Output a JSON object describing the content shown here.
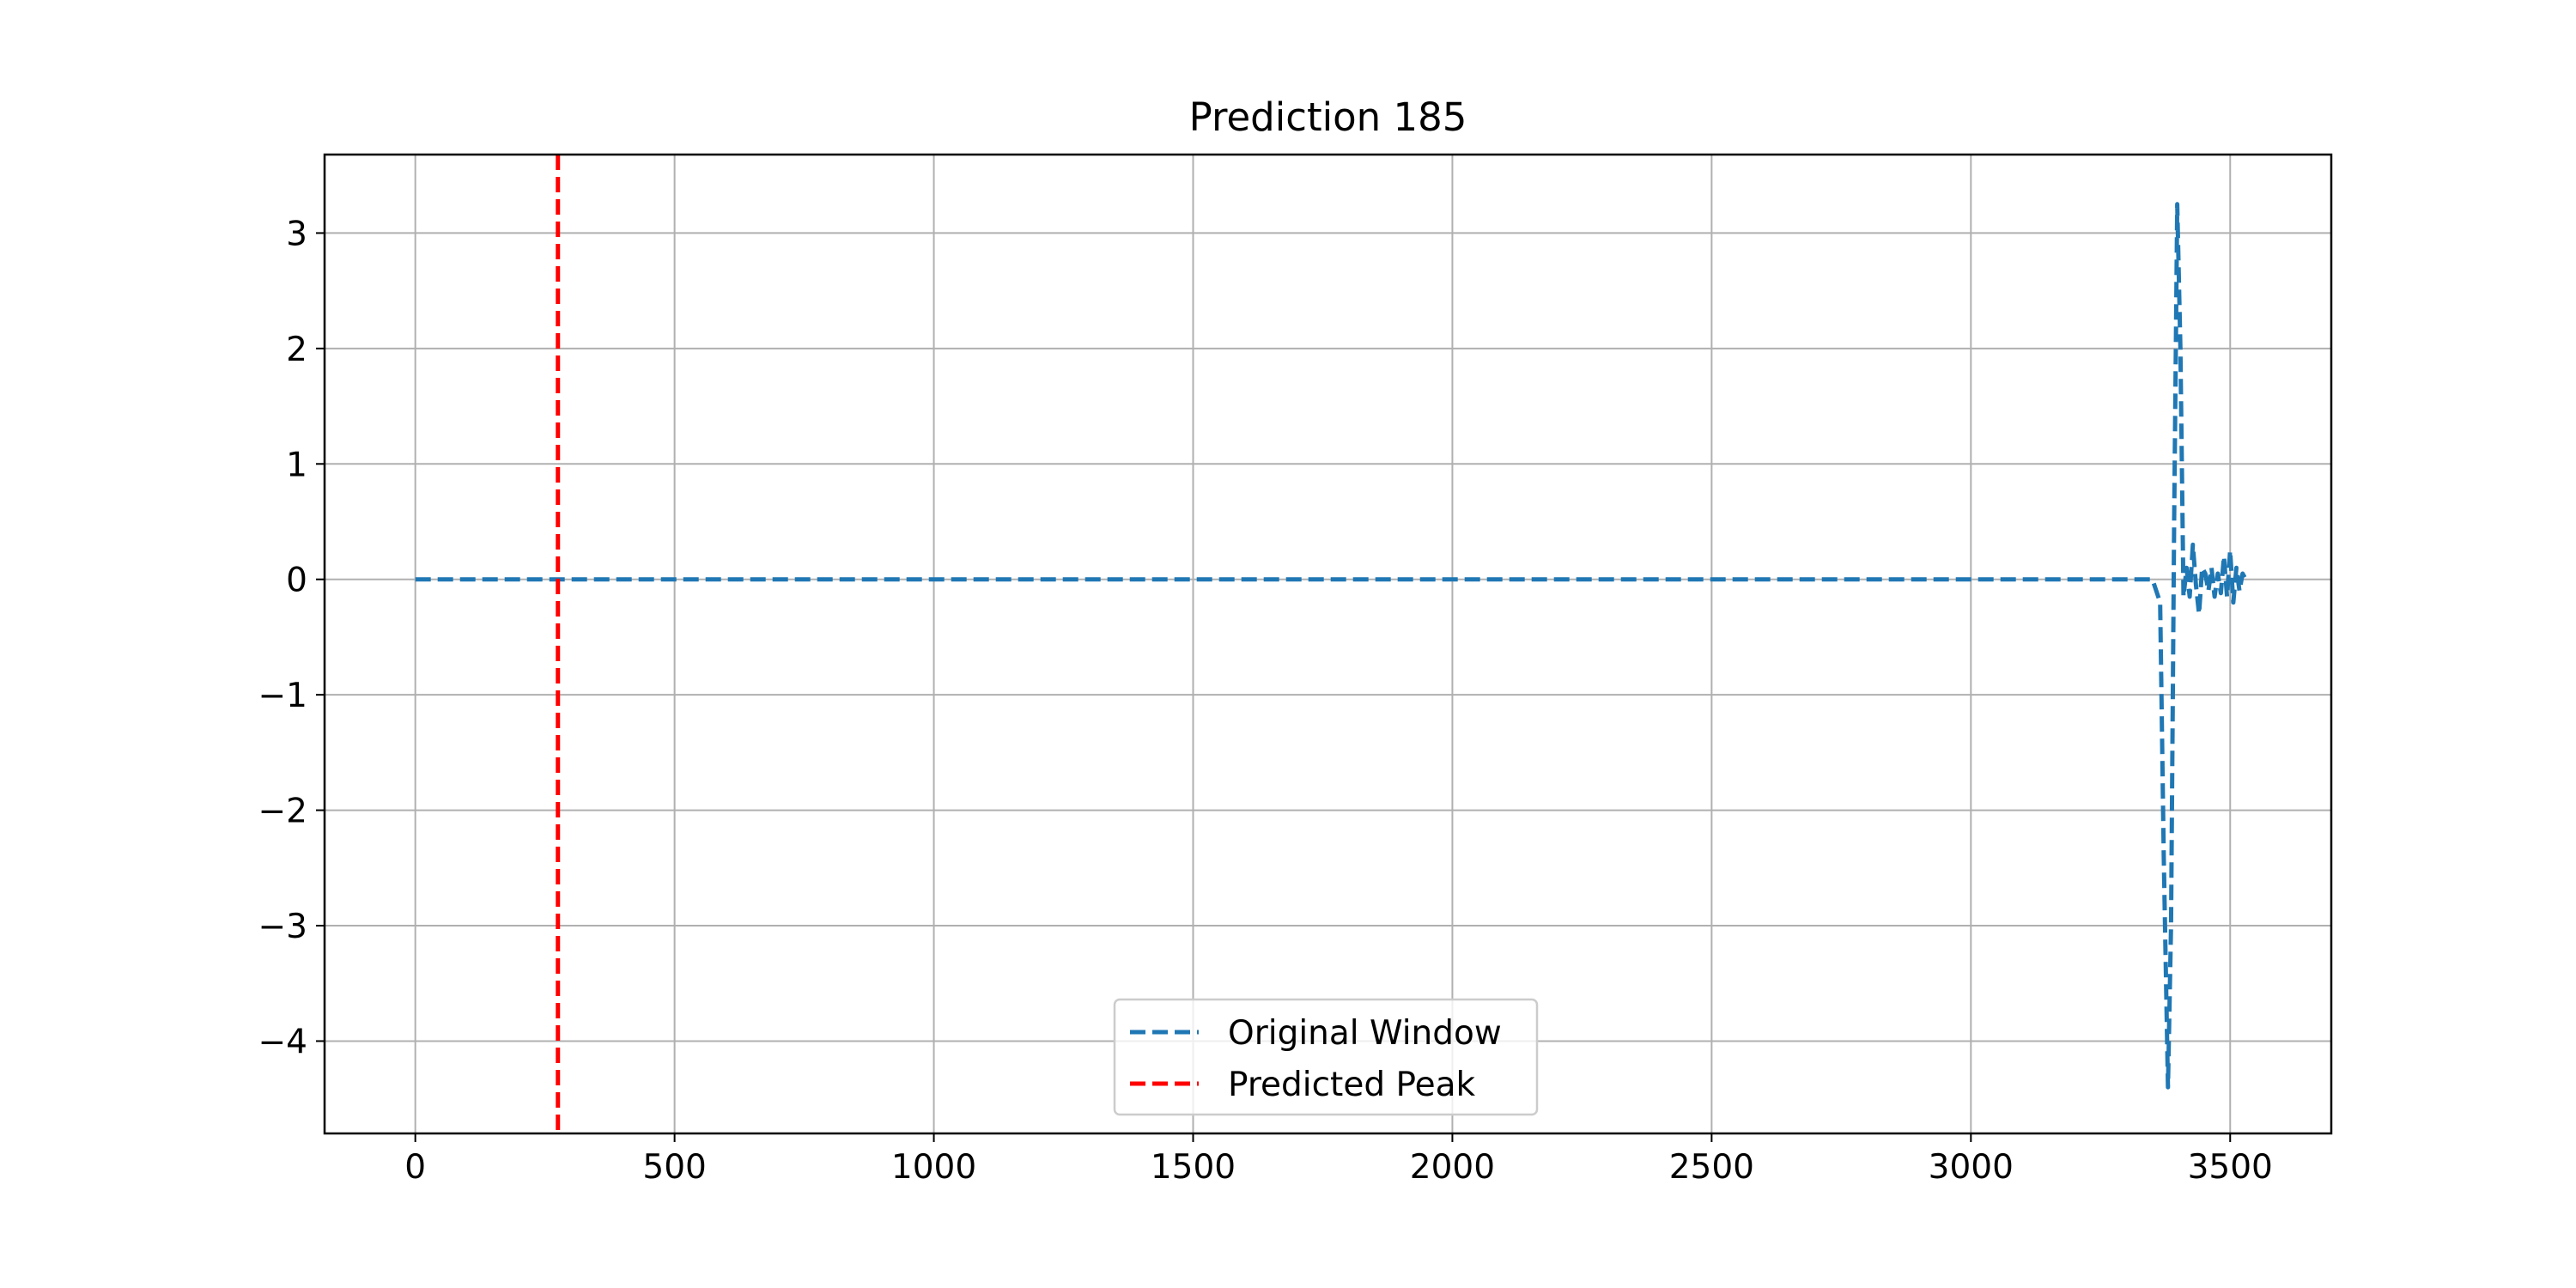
{
  "chart_data": {
    "type": "line",
    "title": "Prediction 185",
    "xlabel": "",
    "ylabel": "",
    "xlim": [
      -175,
      3695
    ],
    "ylim": [
      -4.8,
      3.68
    ],
    "xticks": [
      0,
      500,
      1000,
      1500,
      2000,
      2500,
      3000,
      3500
    ],
    "xtick_labels": [
      "0",
      "500",
      "1000",
      "1500",
      "2000",
      "2500",
      "3000",
      "3500"
    ],
    "yticks": [
      3,
      2,
      1,
      0,
      -1,
      -2,
      -3,
      -4
    ],
    "ytick_labels": [
      "3",
      "2",
      "1",
      "0",
      "−1",
      "−2",
      "−3",
      "−4"
    ],
    "grid": true,
    "legend_position": "lower-center",
    "series": [
      {
        "name": "Original Window",
        "color": "#1f77b4",
        "style": "dashed",
        "x": [
          0,
          500,
          1000,
          1500,
          2000,
          2500,
          3000,
          3350,
          3365,
          3372,
          3380,
          3386,
          3392,
          3398,
          3404,
          3410,
          3416,
          3422,
          3428,
          3434,
          3440,
          3446,
          3452,
          3458,
          3464,
          3470,
          3476,
          3482,
          3488,
          3494,
          3500,
          3506,
          3512,
          3518,
          3524,
          3530
        ],
        "values": [
          0,
          0,
          0,
          0,
          0,
          0,
          0,
          0,
          -0.2,
          -2.4,
          -4.4,
          -3.0,
          0.5,
          3.25,
          2.0,
          -0.15,
          0.1,
          -0.15,
          0.3,
          -0.05,
          -0.3,
          0.1,
          0.05,
          -0.1,
          0.1,
          -0.15,
          0.05,
          -0.12,
          0.2,
          -0.15,
          0.25,
          -0.2,
          0.1,
          -0.1,
          0.05,
          0.0
        ]
      }
    ],
    "vlines": [
      {
        "name": "Predicted Peak",
        "x": 275,
        "color": "#ff0000",
        "style": "dashed"
      }
    ]
  }
}
